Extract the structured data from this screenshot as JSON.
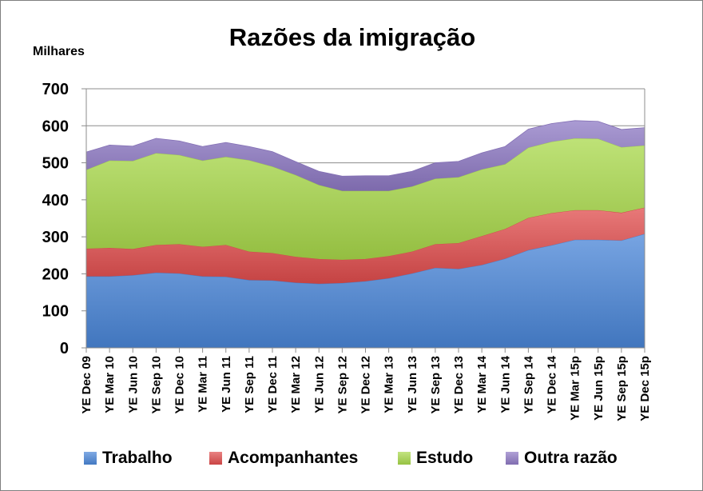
{
  "chart_data": {
    "type": "area",
    "stacked": true,
    "title": "Razões da imigração",
    "ylabel": "Milhares",
    "xlabel": "",
    "ylim": [
      0,
      700
    ],
    "yticks": [
      0,
      100,
      200,
      300,
      400,
      500,
      600,
      700
    ],
    "grid": true,
    "legend_position": "bottom",
    "categories": [
      "YE Dec 09",
      "YE Mar 10",
      "YE Jun 10",
      "YE Sep 10",
      "YE Dec 10",
      "YE Mar 11",
      "YE Jun 11",
      "YE Sep 11",
      "YE Dec 11",
      "YE Mar 12",
      "YE Jun 12",
      "YE Sep 12",
      "YE Dec 12",
      "YE Mar 13",
      "YE Jun 13",
      "YE Sep 13",
      "YE Dec 13",
      "YE Mar 14",
      "YE Jun 14",
      "YE Sep 14",
      "YE Dec 14",
      "YE Mar 15p",
      "YE Jun 15p",
      "YE Sep 15p",
      "YE Dec 15p"
    ],
    "series": [
      {
        "name": "Trabalho",
        "color": "#4a86d8",
        "values": [
          193,
          193,
          196,
          203,
          201,
          193,
          192,
          183,
          182,
          176,
          173,
          175,
          180,
          188,
          201,
          216,
          213,
          224,
          241,
          264,
          277,
          292,
          292,
          290,
          308
        ]
      },
      {
        "name": "Acompanhantes",
        "color": "#e04c4c",
        "values": [
          75,
          77,
          71,
          75,
          79,
          80,
          86,
          77,
          74,
          70,
          67,
          63,
          60,
          60,
          59,
          64,
          70,
          78,
          80,
          87,
          87,
          80,
          80,
          75,
          71
        ]
      },
      {
        "name": "Estudo",
        "color": "#a8d84a",
        "values": [
          213,
          236,
          238,
          248,
          241,
          233,
          238,
          247,
          234,
          221,
          200,
          186,
          184,
          176,
          176,
          177,
          178,
          180,
          175,
          190,
          193,
          194,
          193,
          177,
          168
        ]
      },
      {
        "name": "Outra razão",
        "color": "#8e79c4",
        "values": [
          48,
          42,
          40,
          40,
          38,
          38,
          39,
          37,
          40,
          36,
          37,
          40,
          41,
          41,
          41,
          43,
          43,
          45,
          48,
          50,
          49,
          48,
          47,
          48,
          48
        ]
      }
    ]
  }
}
